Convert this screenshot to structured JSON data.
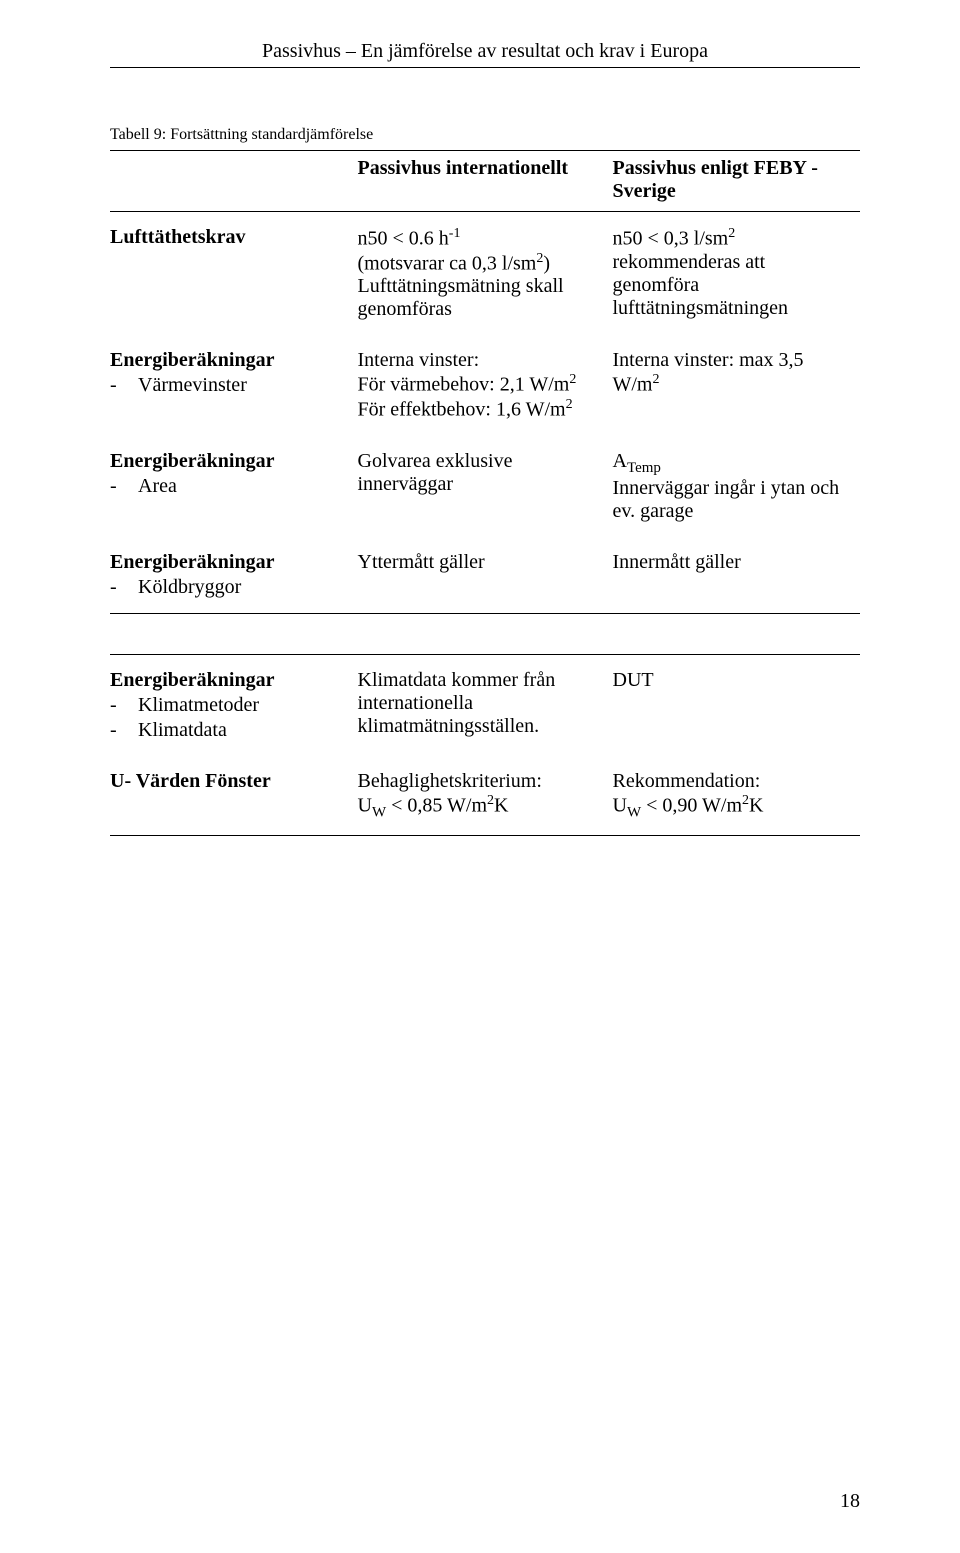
{
  "header": {
    "running": "Passivhus – En jämförelse av resultat och krav i Europa"
  },
  "caption": "Tabell 9: Fortsättning standardjämförelse",
  "columns": {
    "c2": "Passivhus internationellt",
    "c3": "Passivhus enligt FEBY - Sverige"
  },
  "rows": {
    "r1": {
      "label": "Lufttäthetskrav",
      "c2_l1": "n50 < 0.6 h",
      "c2_l1_sup": "-1",
      "c2_l2_a": "(motsvarar ca 0,3 l/sm",
      "c2_l2_sup": "2",
      "c2_l2_b": ")",
      "c2_l3": "Lufttätningsmätning skall genomföras",
      "c3_l1_a": "n50 < 0,3 l/sm",
      "c3_l1_sup": "2",
      "c3_l2": "rekommenderas att genomföra lufttätningsmätningen"
    },
    "r2": {
      "label": "Energiberäkningar",
      "sub": "Värmevinster",
      "c2_l1": "Interna vinster:",
      "c2_l2_a": "För värmebehov: 2,1 W/m",
      "c2_l2_sup": "2",
      "c2_l3_a": "För effektbehov: 1,6 W/m",
      "c2_l3_sup": "2",
      "c3_l1_a": "Interna vinster: max 3,5 W/m",
      "c3_l1_sup": "2"
    },
    "r3": {
      "label": "Energiberäkningar",
      "sub": "Area",
      "c2_l1": "Golvarea exklusive innerväggar",
      "c3_l1_a": "A",
      "c3_l1_sub": "Temp",
      "c3_l2": "Innerväggar ingår i ytan och ev. garage"
    },
    "r4": {
      "label": "Energiberäkningar",
      "sub": "Köldbryggor",
      "c2": "Yttermått gäller",
      "c3": "Innermått gäller"
    },
    "r5": {
      "label": "Energiberäkningar",
      "sub1": "Klimatmetoder",
      "sub2": "Klimatdata",
      "c2": "Klimatdata kommer från internationella klimatmätningsställen.",
      "c3": "DUT"
    },
    "r6": {
      "label": "U- Värden Fönster",
      "c2_l1": "Behaglighetskriterium:",
      "c2_l2_a": "U",
      "c2_l2_sub": "W",
      "c2_l2_b": " < 0,85 W/m",
      "c2_l2_sup": "2",
      "c2_l2_c": "K",
      "c3_l1": "Rekommendation:",
      "c3_l2_a": "U",
      "c3_l2_sub": "W",
      "c3_l2_b": " < 0,90 W/m",
      "c3_l2_sup": "2",
      "c3_l2_c": "K"
    }
  },
  "page_number": "18"
}
